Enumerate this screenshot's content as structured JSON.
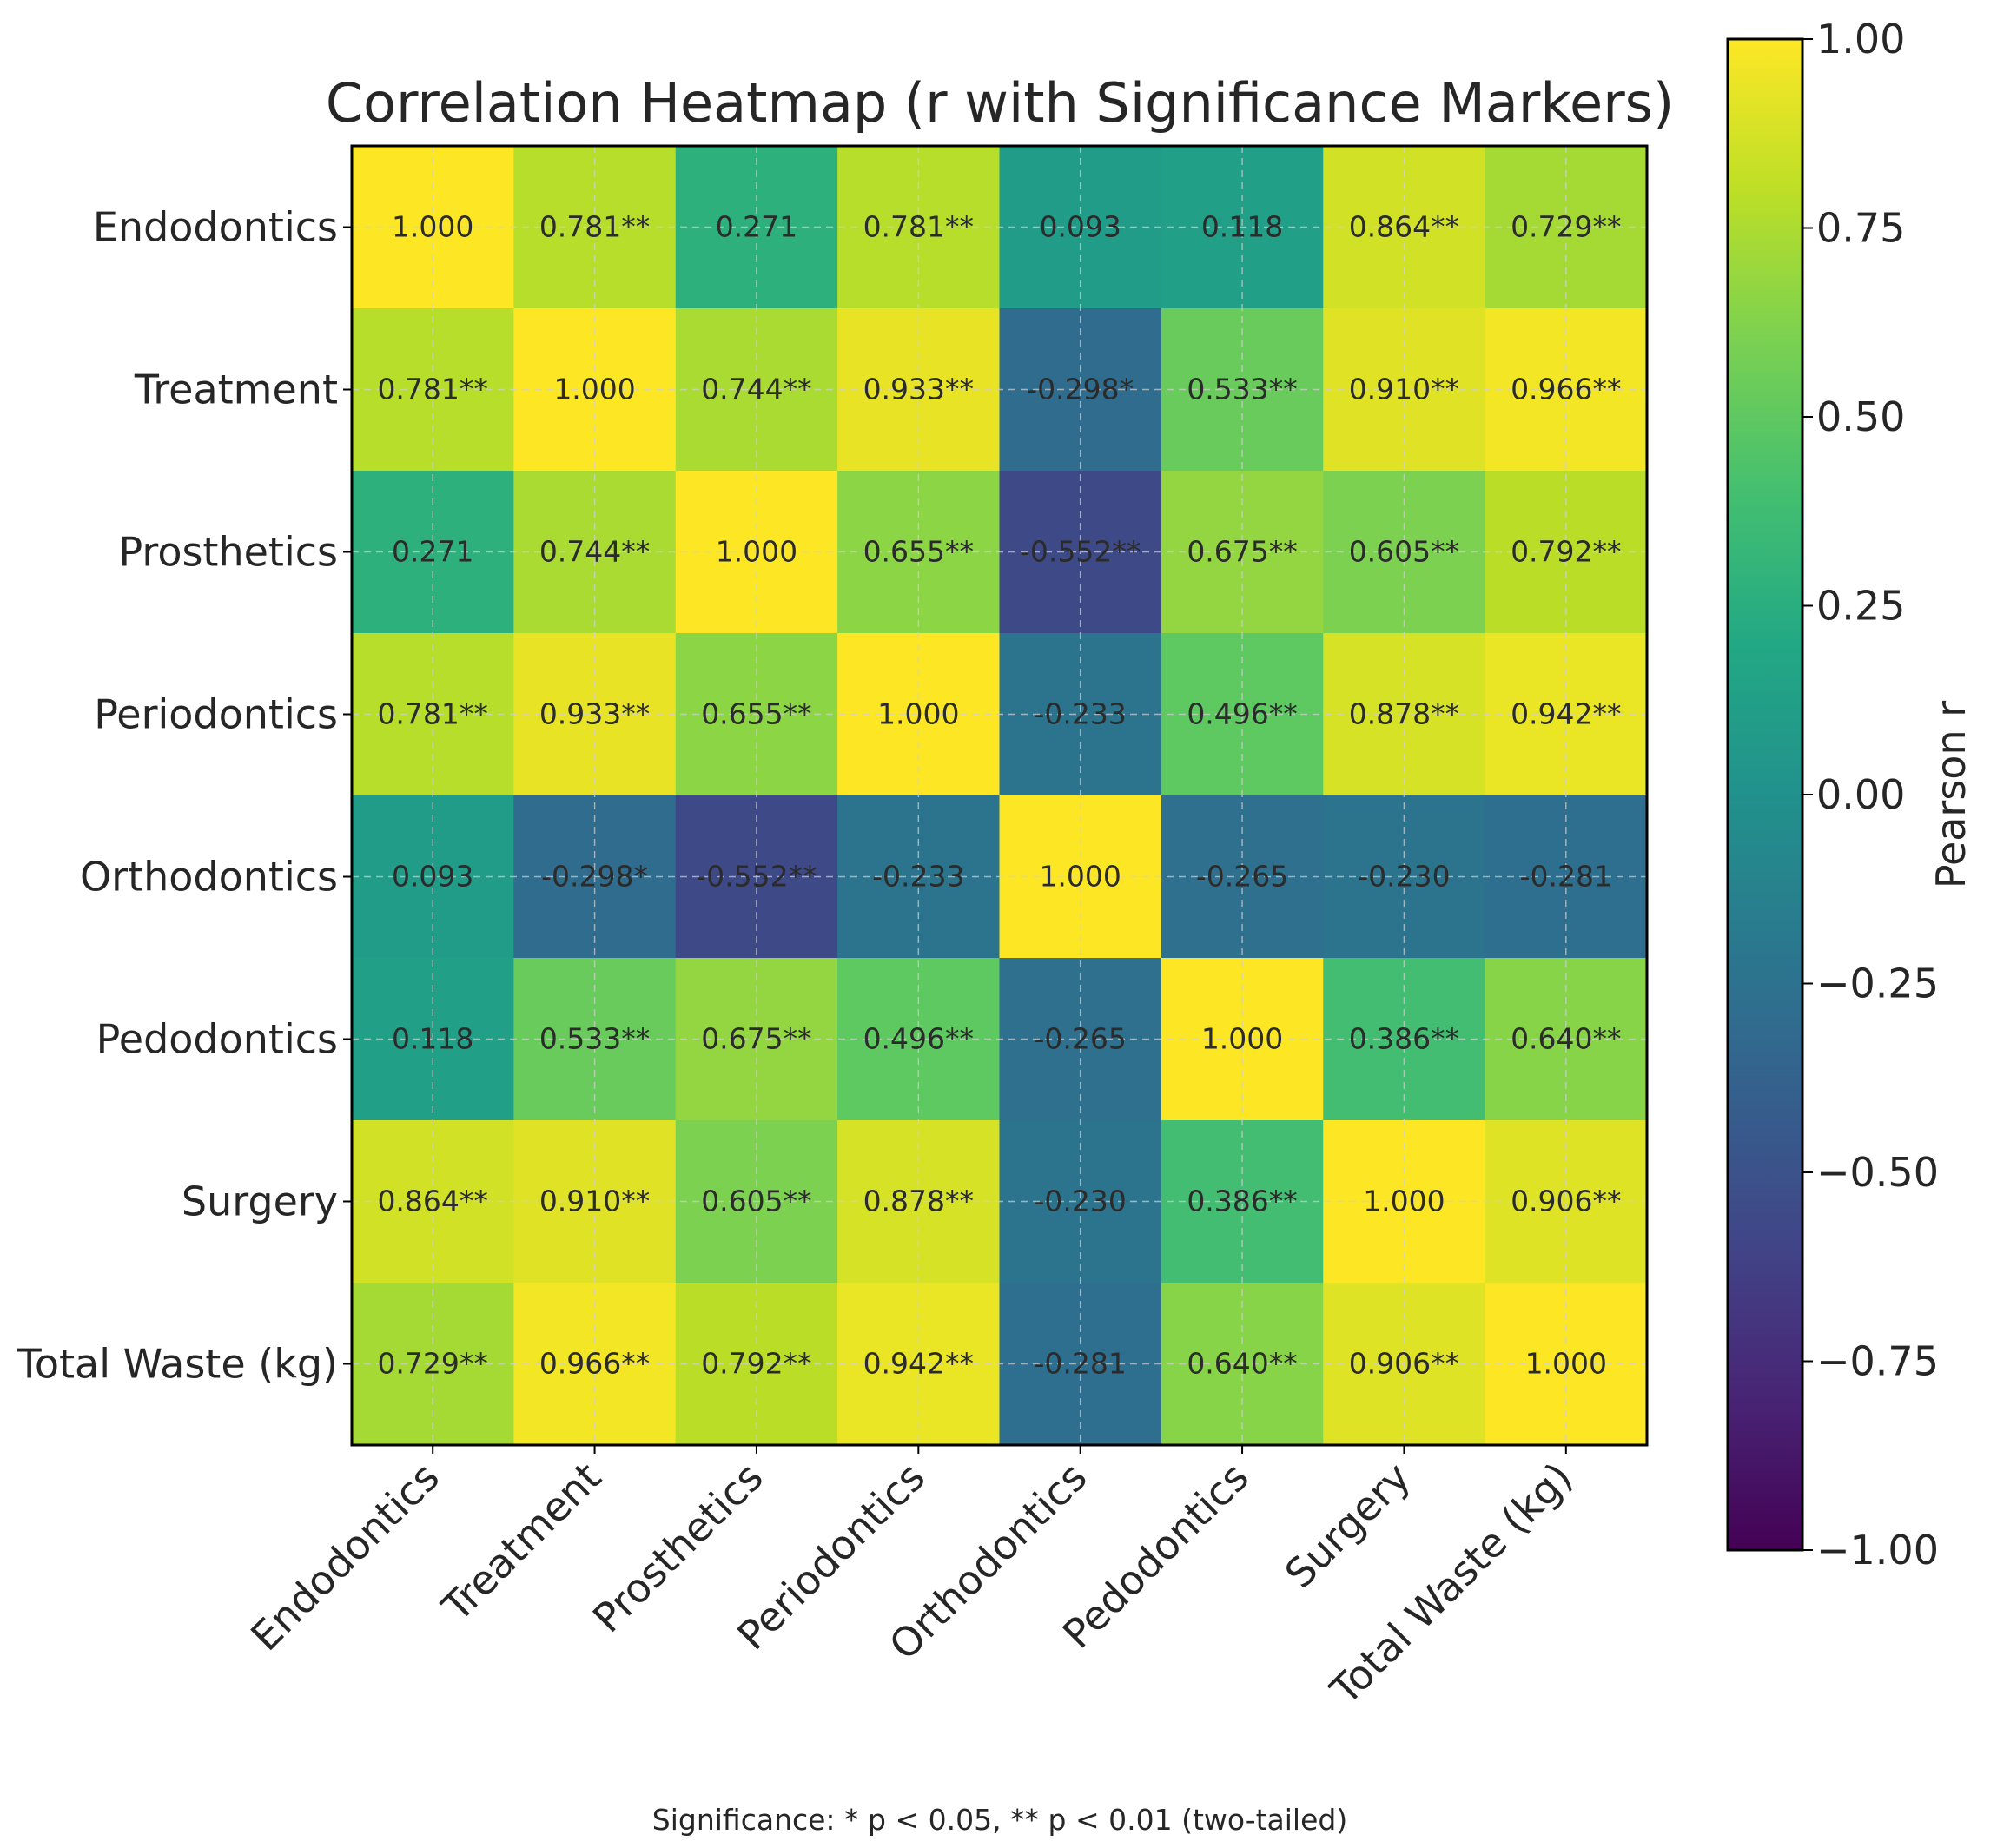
{
  "chart_data": {
    "type": "heatmap",
    "title": "Correlation Heatmap (r with Significance Markers)",
    "variables": [
      "Endodontics",
      "Treatment",
      "Prosthetics",
      "Periodontics",
      "Orthodontics",
      "Pedodontics",
      "Surgery",
      "Total Waste (kg)"
    ],
    "matrix": [
      [
        1.0,
        0.781,
        0.271,
        0.781,
        0.093,
        0.118,
        0.864,
        0.729
      ],
      [
        0.781,
        1.0,
        0.744,
        0.933,
        -0.298,
        0.533,
        0.91,
        0.966
      ],
      [
        0.271,
        0.744,
        1.0,
        0.655,
        -0.552,
        0.675,
        0.605,
        0.792
      ],
      [
        0.781,
        0.933,
        0.655,
        1.0,
        -0.233,
        0.496,
        0.878,
        0.942
      ],
      [
        0.093,
        -0.298,
        -0.552,
        -0.233,
        1.0,
        -0.265,
        -0.23,
        -0.281
      ],
      [
        0.118,
        0.533,
        0.675,
        0.496,
        -0.265,
        1.0,
        0.386,
        0.64
      ],
      [
        0.864,
        0.91,
        0.605,
        0.878,
        -0.23,
        0.386,
        1.0,
        0.906
      ],
      [
        0.729,
        0.966,
        0.792,
        0.942,
        -0.281,
        0.64,
        0.906,
        1.0
      ]
    ],
    "annotations": [
      [
        "1.000",
        "0.781**",
        "0.271",
        "0.781**",
        "0.093",
        "0.118",
        "0.864**",
        "0.729**"
      ],
      [
        "0.781**",
        "1.000",
        "0.744**",
        "0.933**",
        "-0.298*",
        "0.533**",
        "0.910**",
        "0.966**"
      ],
      [
        "0.271",
        "0.744**",
        "1.000",
        "0.655**",
        "-0.552**",
        "0.675**",
        "0.605**",
        "0.792**"
      ],
      [
        "0.781**",
        "0.933**",
        "0.655**",
        "1.000",
        "-0.233",
        "0.496**",
        "0.878**",
        "0.942**"
      ],
      [
        "0.093",
        "-0.298*",
        "-0.552**",
        "-0.233",
        "1.000",
        "-0.265",
        "-0.230",
        "-0.281"
      ],
      [
        "0.118",
        "0.533**",
        "0.675**",
        "0.496**",
        "-0.265",
        "1.000",
        "0.386**",
        "0.640**"
      ],
      [
        "0.864**",
        "0.910**",
        "0.605**",
        "0.878**",
        "-0.230",
        "0.386**",
        "1.000",
        "0.906**"
      ],
      [
        "0.729**",
        "0.966**",
        "0.792**",
        "0.942**",
        "-0.281",
        "0.640**",
        "0.906**",
        "1.000"
      ]
    ],
    "colorbar": {
      "label": "Pearson r",
      "range": [
        -1.0,
        1.0
      ],
      "ticks": [
        1.0,
        0.75,
        0.5,
        0.25,
        0.0,
        -0.25,
        -0.5,
        -0.75,
        -1.0
      ],
      "tick_labels": [
        "1.00",
        "0.75",
        "0.50",
        "0.25",
        "0.00",
        "−0.25",
        "−0.50",
        "−0.75",
        "−1.00"
      ],
      "colormap": "viridis"
    },
    "grid": true,
    "footnote": "Significance: * p < 0.05, ** p < 0.01 (two-tailed)"
  }
}
